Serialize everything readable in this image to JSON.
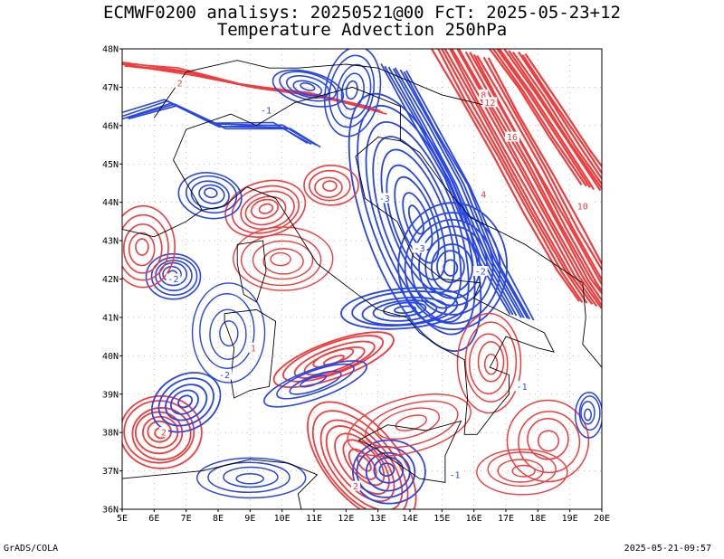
{
  "header": {
    "line1": "ECMWF0200 analisys: 20250521@00 FcT: 2025-05-23+12",
    "line2": "Temperature Advection 250hPa"
  },
  "axes": {
    "lat_labels": [
      "36N",
      "37N",
      "38N",
      "39N",
      "40N",
      "41N",
      "42N",
      "43N",
      "44N",
      "45N",
      "46N",
      "47N",
      "48N"
    ],
    "lon_labels": [
      "5E",
      "6E",
      "7E",
      "8E",
      "9E",
      "10E",
      "11E",
      "12E",
      "13E",
      "14E",
      "15E",
      "16E",
      "17E",
      "18E",
      "19E",
      "20E"
    ],
    "lat_range": [
      36,
      48
    ],
    "lon_range": [
      5,
      20
    ]
  },
  "colors": {
    "warm_advection": "#f03c3c",
    "cold_advection": "#2846e6",
    "coastline": "#000000",
    "grid": "#9a9a9a"
  },
  "contour_labels": [
    {
      "text": "2",
      "lon": 6.8,
      "lat": 47.1,
      "kind": "warm"
    },
    {
      "text": "-1",
      "lon": 9.5,
      "lat": 46.4,
      "kind": "cold"
    },
    {
      "text": "8",
      "lon": 16.3,
      "lat": 46.8,
      "kind": "warm"
    },
    {
      "text": "12",
      "lon": 16.5,
      "lat": 46.6,
      "kind": "warm"
    },
    {
      "text": "16",
      "lon": 17.2,
      "lat": 45.7,
      "kind": "warm"
    },
    {
      "text": "-3",
      "lon": 13.2,
      "lat": 44.1,
      "kind": "cold"
    },
    {
      "text": "4",
      "lon": 16.3,
      "lat": 44.2,
      "kind": "warm"
    },
    {
      "text": "10",
      "lon": 19.4,
      "lat": 43.9,
      "kind": "warm"
    },
    {
      "text": "-2",
      "lon": 6.6,
      "lat": 42.0,
      "kind": "cold"
    },
    {
      "text": "-3",
      "lon": 14.3,
      "lat": 42.8,
      "kind": "cold"
    },
    {
      "text": "-2",
      "lon": 16.2,
      "lat": 42.2,
      "kind": "cold"
    },
    {
      "text": "1",
      "lon": 9.1,
      "lat": 40.2,
      "kind": "warm"
    },
    {
      "text": "-2",
      "lon": 8.2,
      "lat": 39.5,
      "kind": "cold"
    },
    {
      "text": "2",
      "lon": 6.3,
      "lat": 38.0,
      "kind": "warm"
    },
    {
      "text": "-1",
      "lon": 17.5,
      "lat": 39.2,
      "kind": "cold"
    },
    {
      "text": "-1",
      "lon": 15.4,
      "lat": 36.9,
      "kind": "cold"
    },
    {
      "text": "2",
      "lon": 12.3,
      "lat": 36.6,
      "kind": "warm"
    }
  ],
  "footer": {
    "left": "GrADS/COLA",
    "right": "2025-05-21-09:57"
  }
}
